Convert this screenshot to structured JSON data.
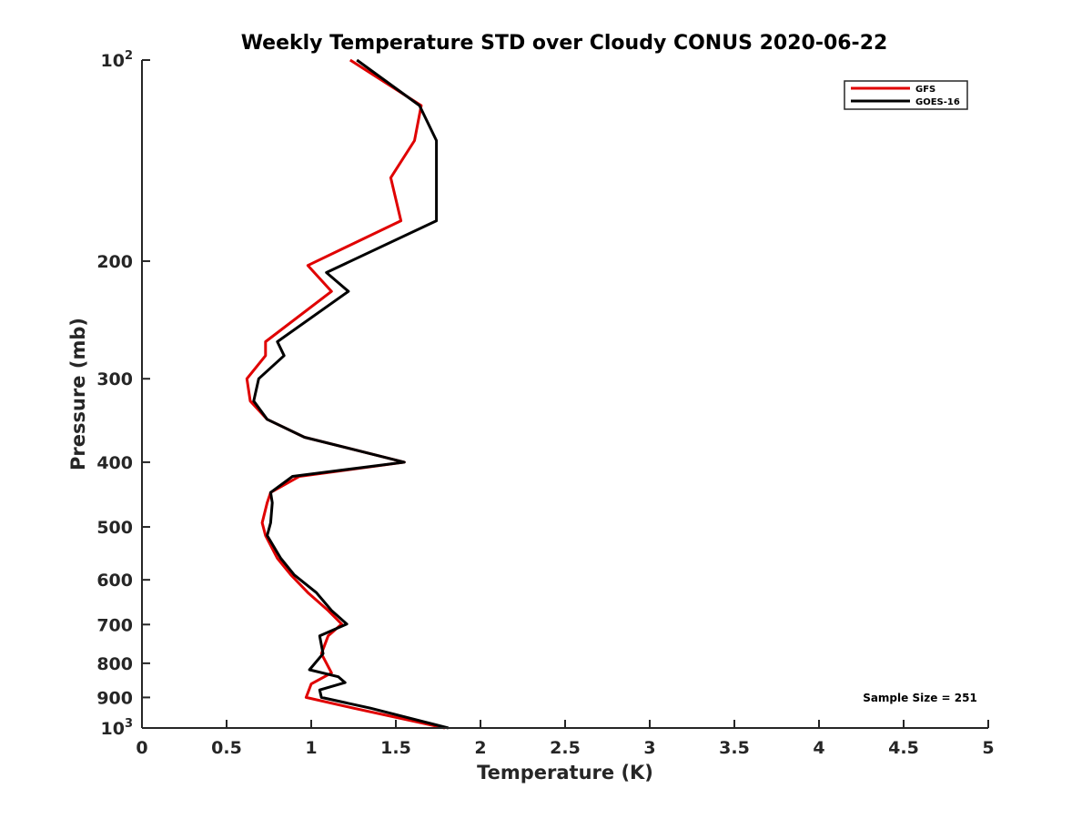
{
  "chart_data": {
    "type": "line",
    "title": "Weekly Temperature STD over Cloudy CONUS 2020-06-22",
    "xlabel": "Temperature (K)",
    "ylabel": "Pressure (mb)",
    "xlim": [
      0,
      5
    ],
    "ylim": [
      100,
      1000
    ],
    "y_scale": "log",
    "y_direction": "reversed",
    "grid": false,
    "legend_position": "top-right",
    "x_ticks": [
      0,
      0.5,
      1,
      1.5,
      2,
      2.5,
      3,
      3.5,
      4,
      4.5,
      5
    ],
    "x_tick_labels": [
      "0",
      "0.5",
      "1",
      "1.5",
      "2",
      "2.5",
      "3",
      "3.5",
      "4",
      "4.5",
      "5"
    ],
    "y_ticks": [
      100,
      200,
      300,
      400,
      500,
      600,
      700,
      800,
      900,
      1000
    ],
    "y_tick_labels": [
      {
        "base": "10",
        "exp": "2"
      },
      {
        "base": "200",
        "exp": ""
      },
      {
        "base": "300",
        "exp": ""
      },
      {
        "base": "400",
        "exp": ""
      },
      {
        "base": "500",
        "exp": ""
      },
      {
        "base": "600",
        "exp": ""
      },
      {
        "base": "700",
        "exp": ""
      },
      {
        "base": "800",
        "exp": ""
      },
      {
        "base": "900",
        "exp": ""
      },
      {
        "base": "10",
        "exp": "3"
      }
    ],
    "annotation": "Sample Size = 251",
    "series": [
      {
        "name": "GFS",
        "color": "#e00000",
        "points": [
          [
            1.23,
            100
          ],
          [
            1.65,
            117
          ],
          [
            1.61,
            132
          ],
          [
            1.47,
            150
          ],
          [
            1.53,
            174
          ],
          [
            0.98,
            203
          ],
          [
            1.12,
            222
          ],
          [
            0.73,
            264
          ],
          [
            0.73,
            277
          ],
          [
            0.62,
            300
          ],
          [
            0.64,
            324
          ],
          [
            0.74,
            345
          ],
          [
            0.96,
            367
          ],
          [
            1.55,
            400
          ],
          [
            0.93,
            420
          ],
          [
            0.76,
            444
          ],
          [
            0.74,
            460
          ],
          [
            0.71,
            493
          ],
          [
            0.73,
            515
          ],
          [
            0.8,
            557
          ],
          [
            0.88,
            590
          ],
          [
            0.98,
            627
          ],
          [
            1.1,
            667
          ],
          [
            1.18,
            699
          ],
          [
            1.1,
            728
          ],
          [
            1.06,
            774
          ],
          [
            1.12,
            827
          ],
          [
            1.0,
            859
          ],
          [
            0.97,
            900
          ],
          [
            1.25,
            934
          ],
          [
            1.79,
            1000
          ]
        ]
      },
      {
        "name": "GOES-16",
        "color": "#000000",
        "points": [
          [
            1.27,
            100
          ],
          [
            1.64,
            117
          ],
          [
            1.74,
            132
          ],
          [
            1.74,
            150
          ],
          [
            1.74,
            174
          ],
          [
            1.09,
            208
          ],
          [
            1.22,
            222
          ],
          [
            0.8,
            264
          ],
          [
            0.84,
            277
          ],
          [
            0.69,
            300
          ],
          [
            0.66,
            324
          ],
          [
            0.74,
            345
          ],
          [
            0.96,
            367
          ],
          [
            1.55,
            400
          ],
          [
            0.89,
            420
          ],
          [
            0.76,
            444
          ],
          [
            0.77,
            460
          ],
          [
            0.76,
            493
          ],
          [
            0.74,
            515
          ],
          [
            0.82,
            557
          ],
          [
            0.9,
            590
          ],
          [
            1.03,
            627
          ],
          [
            1.12,
            667
          ],
          [
            1.21,
            699
          ],
          [
            1.05,
            728
          ],
          [
            1.07,
            774
          ],
          [
            0.99,
            818
          ],
          [
            1.16,
            838
          ],
          [
            1.2,
            855
          ],
          [
            1.05,
            877
          ],
          [
            1.06,
            900
          ],
          [
            1.35,
            934
          ],
          [
            1.81,
            1000
          ]
        ]
      }
    ]
  }
}
